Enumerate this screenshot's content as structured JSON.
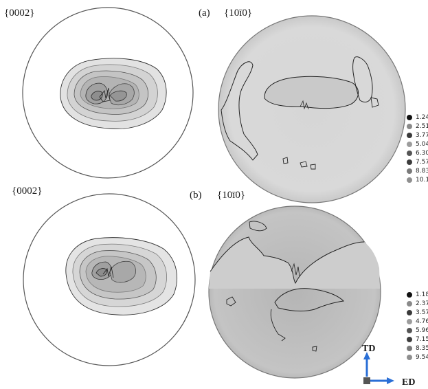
{
  "panels": [
    {
      "label": "(a)",
      "left_title": "{0002}",
      "right_title": "{10ī0}"
    },
    {
      "label": "(b)",
      "left_title": "{0002}",
      "right_title": "{10ī0}"
    }
  ],
  "legend_a": [
    "1.24",
    "2.51",
    "3.77",
    "5.04",
    "6.30",
    "7.57",
    "8.83",
    "10.10"
  ],
  "legend_b": [
    "1.18",
    "2.37",
    "3.57",
    "4.76",
    "5.96",
    "7.15",
    "8.35",
    "9.54"
  ],
  "legend_colors": [
    "#111111",
    "#8a8a8a",
    "#3a3a3a",
    "#9c9c9c",
    "#555555",
    "#3d3d3d",
    "#7a7a7a",
    "#8f8f8f"
  ],
  "axes": {
    "vertical": "TD",
    "horizontal": "ED"
  }
}
